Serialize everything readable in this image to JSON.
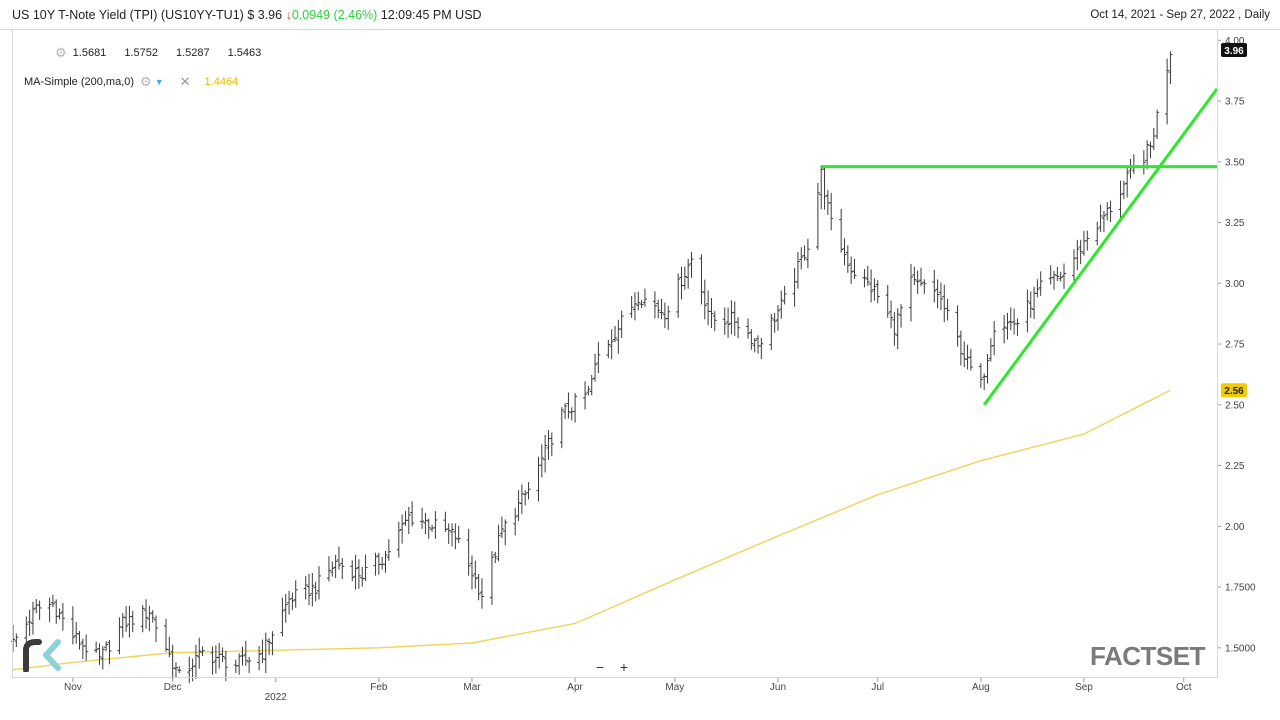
{
  "header": {
    "title": "US 10Y T-Note Yield (TPI)",
    "symbol": "(US10YY-TU1)",
    "price": "$ 3.96",
    "change": "0.0949",
    "change_pct": "(2.46%)",
    "time": "12:09:45 PM",
    "currency": "USD",
    "date_range": "Oct 14, 2021 - Sep 27, 2022",
    "interval": ", Daily"
  },
  "ohlc": {
    "open": "1.5681",
    "high": "1.5752",
    "low": "1.5287",
    "close": "1.5463"
  },
  "indicator": {
    "label": "MA-Simple (200,ma,0)",
    "value": "1.4464"
  },
  "colors": {
    "price_bars": "#3a3a3a",
    "moving_average": "#f3d25a",
    "trendlines": "#2ee82e",
    "last_price_badge": "#111111",
    "ma_badge": "#f2cc00"
  },
  "icons": {
    "settings": "gear-icon",
    "dropdown": "chevron-down-icon",
    "remove": "close-icon"
  },
  "zoom": {
    "out": "−",
    "in": "+"
  },
  "branding": {
    "right_logo": "FACTSET",
    "left_logo": "rk"
  },
  "chart_data": {
    "type": "ohlc",
    "ylim": [
      1.38,
      4.03
    ],
    "xlim": [
      "2021-10-14",
      "2022-10-11"
    ],
    "y_ticks": [
      "4.00",
      "3.75",
      "3.50",
      "3.25",
      "3.00",
      "2.75",
      "2.50",
      "2.25",
      "2.00",
      "1.7500",
      "1.5000"
    ],
    "x_ticks": [
      {
        "label": "Nov",
        "date": "2021-11-01"
      },
      {
        "label": "Dec",
        "date": "2021-12-01"
      },
      {
        "label": "2022",
        "date": "2022-01-01"
      },
      {
        "label": "Feb",
        "date": "2022-02-01"
      },
      {
        "label": "Mar",
        "date": "2022-03-01"
      },
      {
        "label": "Apr",
        "date": "2022-04-01"
      },
      {
        "label": "May",
        "date": "2022-05-01"
      },
      {
        "label": "Jun",
        "date": "2022-06-01"
      },
      {
        "label": "Jul",
        "date": "2022-07-01"
      },
      {
        "label": "Aug",
        "date": "2022-08-01"
      },
      {
        "label": "Sep",
        "date": "2022-09-01"
      },
      {
        "label": "Oct",
        "date": "2022-10-01"
      }
    ],
    "last_price_label": "3.96",
    "ma_last_label": "2.56",
    "close_path": [
      [
        "2021-10-14",
        1.52
      ],
      [
        "2021-10-21",
        1.66
      ],
      [
        "2021-10-26",
        1.68
      ],
      [
        "2021-11-01",
        1.55
      ],
      [
        "2021-11-09",
        1.45
      ],
      [
        "2021-11-16",
        1.6
      ],
      [
        "2021-11-24",
        1.65
      ],
      [
        "2021-12-03",
        1.38
      ],
      [
        "2021-12-10",
        1.48
      ],
      [
        "2021-12-20",
        1.43
      ],
      [
        "2021-12-28",
        1.48
      ],
      [
        "2022-01-05",
        1.7
      ],
      [
        "2022-01-13",
        1.75
      ],
      [
        "2022-01-19",
        1.85
      ],
      [
        "2022-01-27",
        1.8
      ],
      [
        "2022-02-03",
        1.88
      ],
      [
        "2022-02-10",
        2.04
      ],
      [
        "2022-02-15",
        2.02
      ],
      [
        "2022-02-24",
        1.96
      ],
      [
        "2022-03-04",
        1.72
      ],
      [
        "2022-03-10",
        1.98
      ],
      [
        "2022-03-18",
        2.15
      ],
      [
        "2022-03-28",
        2.46
      ],
      [
        "2022-04-05",
        2.55
      ],
      [
        "2022-04-08",
        2.7
      ],
      [
        "2022-04-14",
        2.82
      ],
      [
        "2022-04-20",
        2.95
      ],
      [
        "2022-04-28",
        2.88
      ],
      [
        "2022-05-06",
        3.1
      ],
      [
        "2022-05-12",
        2.85
      ],
      [
        "2022-05-19",
        2.85
      ],
      [
        "2022-05-26",
        2.75
      ],
      [
        "2022-06-03",
        2.93
      ],
      [
        "2022-06-10",
        3.16
      ],
      [
        "2022-06-14",
        3.45
      ],
      [
        "2022-06-17",
        3.24
      ],
      [
        "2022-06-23",
        3.06
      ],
      [
        "2022-06-30",
        2.97
      ],
      [
        "2022-07-06",
        2.82
      ],
      [
        "2022-07-11",
        3.0
      ],
      [
        "2022-07-19",
        2.96
      ],
      [
        "2022-07-28",
        2.67
      ],
      [
        "2022-08-01",
        2.58
      ],
      [
        "2022-08-05",
        2.83
      ],
      [
        "2022-08-12",
        2.84
      ],
      [
        "2022-08-19",
        2.98
      ],
      [
        "2022-08-26",
        3.04
      ],
      [
        "2022-09-02",
        3.19
      ],
      [
        "2022-09-09",
        3.31
      ],
      [
        "2022-09-15",
        3.45
      ],
      [
        "2022-09-21",
        3.56
      ],
      [
        "2022-09-23",
        3.69
      ],
      [
        "2022-09-27",
        3.96
      ]
    ],
    "moving_average_path": [
      [
        "2021-10-14",
        1.41
      ],
      [
        "2021-11-01",
        1.44
      ],
      [
        "2021-12-01",
        1.48
      ],
      [
        "2022-01-01",
        1.49
      ],
      [
        "2022-02-01",
        1.5
      ],
      [
        "2022-03-01",
        1.52
      ],
      [
        "2022-04-01",
        1.6
      ],
      [
        "2022-05-01",
        1.78
      ],
      [
        "2022-06-01",
        1.96
      ],
      [
        "2022-07-01",
        2.13
      ],
      [
        "2022-08-01",
        2.27
      ],
      [
        "2022-09-01",
        2.38
      ],
      [
        "2022-09-27",
        2.56
      ]
    ],
    "annotations": [
      {
        "type": "horizontal",
        "value": 3.48,
        "from": "2022-06-14",
        "to": "2022-10-11"
      },
      {
        "type": "trendline",
        "from": [
          "2022-08-02",
          2.5
        ],
        "to": [
          "2022-10-11",
          3.8
        ]
      }
    ]
  }
}
